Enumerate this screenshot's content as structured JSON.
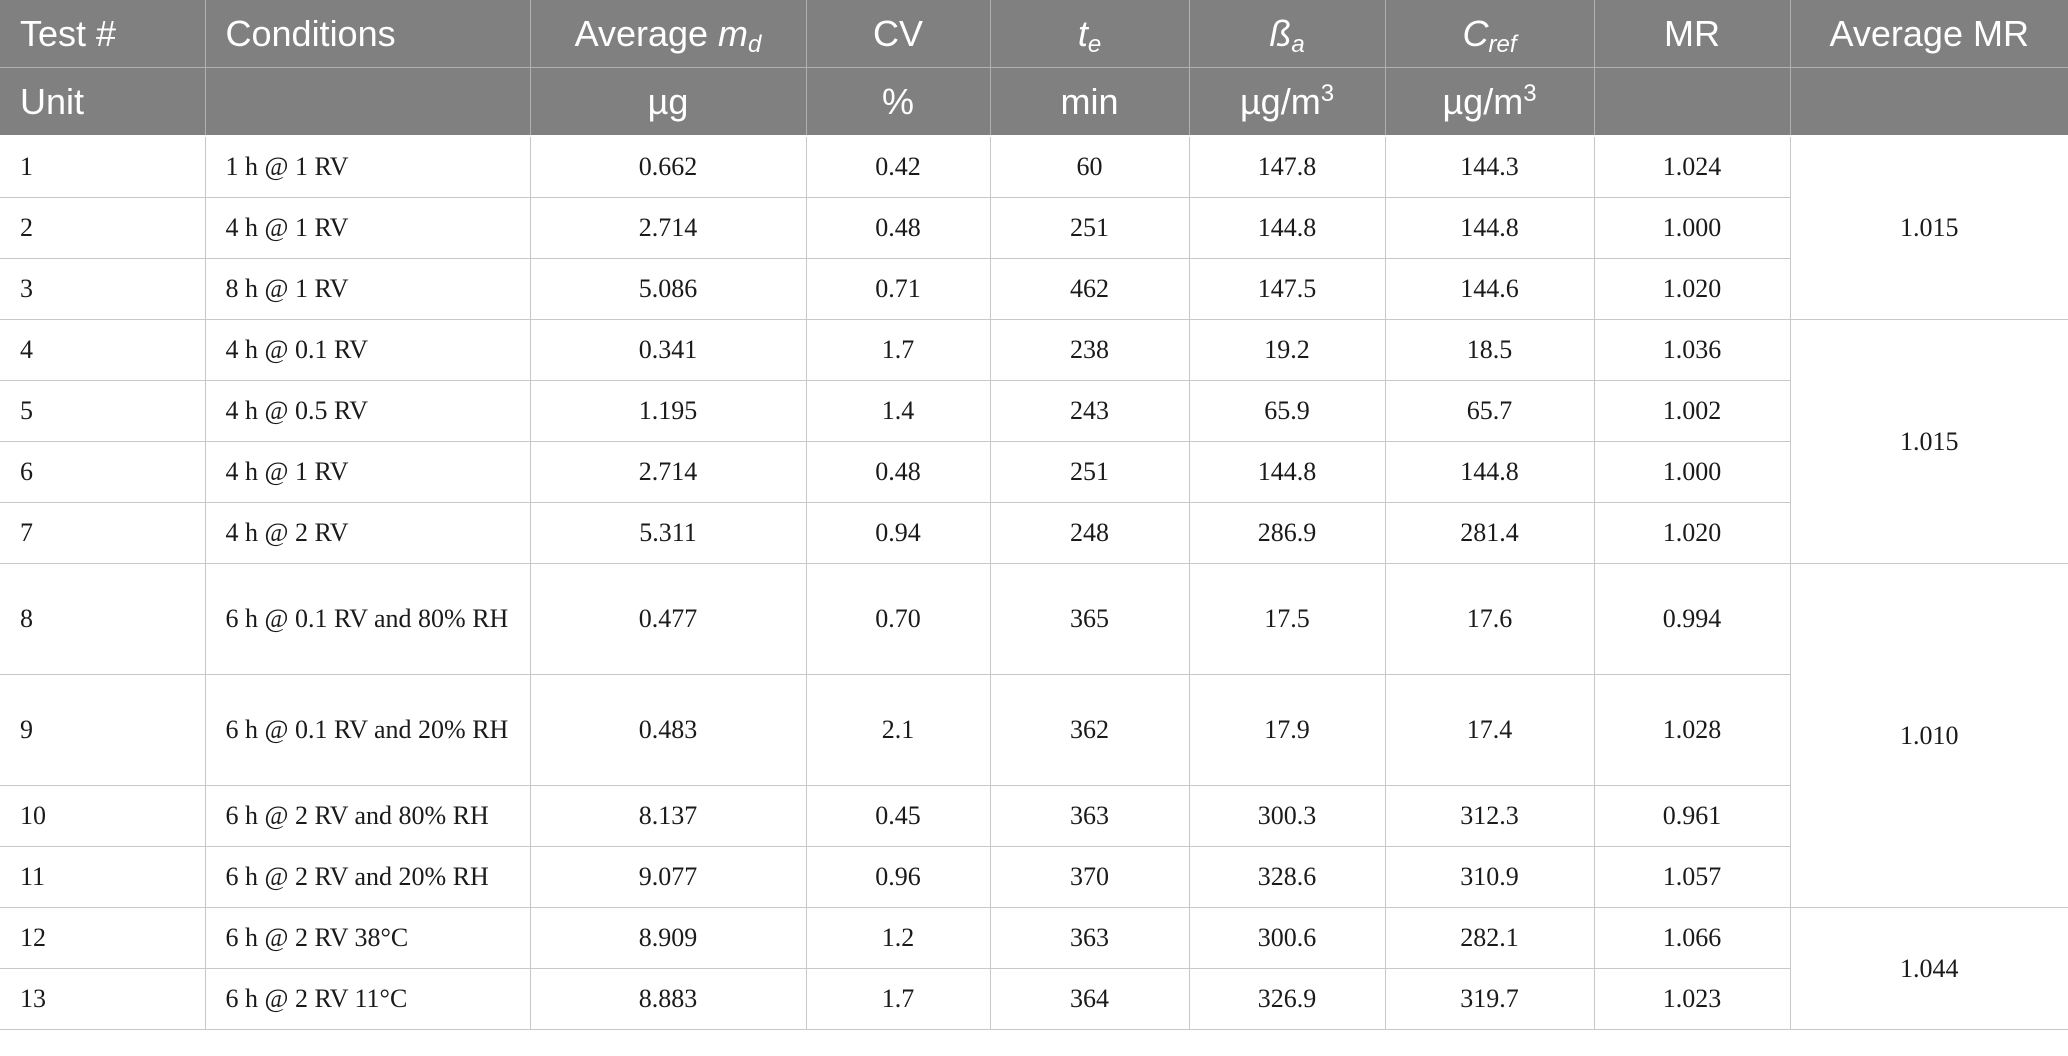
{
  "header": {
    "test": "Test #",
    "conditions": "Conditions",
    "avg_md_prefix": "Average ",
    "avg_md_var": "m",
    "avg_md_sub": "d",
    "cv": "CV",
    "te_var": "t",
    "te_sub": "e",
    "ba_var": "ß",
    "ba_sub": "a",
    "cref_var": "C",
    "cref_sub": "ref",
    "mr": "MR",
    "avg_mr": "Average MR"
  },
  "units": {
    "label": "Unit",
    "md": "µg",
    "cv": "%",
    "te": "min",
    "ba_base": "µg/m",
    "ba_exp": "3",
    "cref_base": "µg/m",
    "cref_exp": "3"
  },
  "rows": [
    {
      "test": "1",
      "conditions": "1 h @ 1 RV",
      "md": "0.662",
      "cv": "0.42",
      "te": "60",
      "ba": "147.8",
      "cref": "144.3",
      "mr": "1.024"
    },
    {
      "test": "2",
      "conditions": "4 h @ 1 RV",
      "md": "2.714",
      "cv": "0.48",
      "te": "251",
      "ba": "144.8",
      "cref": "144.8",
      "mr": "1.000"
    },
    {
      "test": "3",
      "conditions": "8 h @ 1 RV",
      "md": "5.086",
      "cv": "0.71",
      "te": "462",
      "ba": "147.5",
      "cref": "144.6",
      "mr": "1.020"
    },
    {
      "test": "4",
      "conditions": "4 h @ 0.1 RV",
      "md": "0.341",
      "cv": "1.7",
      "te": "238",
      "ba": "19.2",
      "cref": "18.5",
      "mr": "1.036"
    },
    {
      "test": "5",
      "conditions": "4 h @ 0.5 RV",
      "md": "1.195",
      "cv": "1.4",
      "te": "243",
      "ba": "65.9",
      "cref": "65.7",
      "mr": "1.002"
    },
    {
      "test": "6",
      "conditions": "4 h @ 1 RV",
      "md": "2.714",
      "cv": "0.48",
      "te": "251",
      "ba": "144.8",
      "cref": "144.8",
      "mr": "1.000"
    },
    {
      "test": "7",
      "conditions": "4 h @ 2 RV",
      "md": "5.311",
      "cv": "0.94",
      "te": "248",
      "ba": "286.9",
      "cref": "281.4",
      "mr": "1.020"
    },
    {
      "test": "8",
      "conditions": "6 h @ 0.1 RV and 80% RH",
      "md": "0.477",
      "cv": "0.70",
      "te": "365",
      "ba": "17.5",
      "cref": "17.6",
      "mr": "0.994"
    },
    {
      "test": "9",
      "conditions": "6 h @ 0.1 RV and 20% RH",
      "md": "0.483",
      "cv": "2.1",
      "te": "362",
      "ba": "17.9",
      "cref": "17.4",
      "mr": "1.028"
    },
    {
      "test": "10",
      "conditions": "6 h @ 2 RV and 80% RH",
      "md": "8.137",
      "cv": "0.45",
      "te": "363",
      "ba": "300.3",
      "cref": "312.3",
      "mr": "0.961"
    },
    {
      "test": "11",
      "conditions": "6 h @ 2 RV and 20% RH",
      "md": "9.077",
      "cv": "0.96",
      "te": "370",
      "ba": "328.6",
      "cref": "310.9",
      "mr": "1.057"
    },
    {
      "test": "12",
      "conditions": "6 h @ 2 RV 38°C",
      "md": "8.909",
      "cv": "1.2",
      "te": "363",
      "ba": "300.6",
      "cref": "282.1",
      "mr": "1.066"
    },
    {
      "test": "13",
      "conditions": "6 h @ 2 RV 11°C",
      "md": "8.883",
      "cv": "1.7",
      "te": "364",
      "ba": "326.9",
      "cref": "319.7",
      "mr": "1.023"
    }
  ],
  "average_mr": [
    "1.015",
    "1.015",
    "1.010",
    "1.044"
  ]
}
